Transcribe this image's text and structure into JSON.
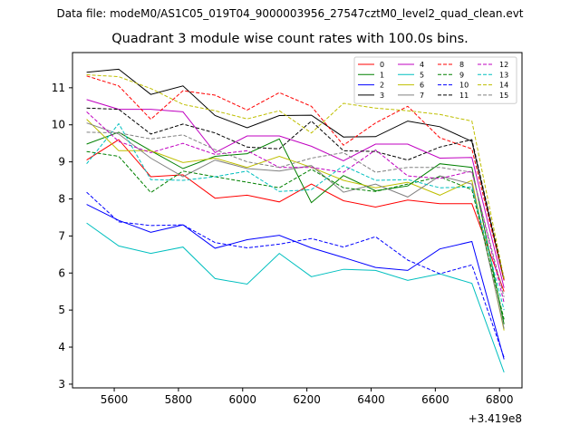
{
  "figure": {
    "suptitle": "Data file: modeM0/AS1C05_019T04_9000003956_27547cztM0_level2_quad_clean.evt"
  },
  "chart_data": {
    "type": "line",
    "title": "Quadrant 3 module wise count rates with 100.0s bins.",
    "xlabel": "",
    "ylabel": "",
    "x_offset_label": "+3.419e8",
    "xlim": [
      5470,
      6870
    ],
    "ylim": [
      2.9,
      11.95
    ],
    "xticks": [
      5600,
      5800,
      6000,
      6200,
      6400,
      6600,
      6800
    ],
    "yticks": [
      3,
      4,
      5,
      6,
      7,
      8,
      9,
      10,
      11
    ],
    "x": [
      5514,
      5614,
      5714,
      5814,
      5914,
      6014,
      6114,
      6214,
      6314,
      6414,
      6514,
      6614,
      6714,
      6814
    ],
    "legend": {
      "location": "upper-right",
      "columns": 4
    },
    "series": [
      {
        "name": "0",
        "color": "#ff0000",
        "style": "solid",
        "values": [
          9.05,
          9.6,
          8.6,
          8.65,
          8.02,
          8.1,
          7.92,
          8.4,
          7.95,
          7.78,
          7.97,
          7.87,
          7.87,
          5.5
        ]
      },
      {
        "name": "1",
        "color": "#008000",
        "style": "solid",
        "values": [
          9.48,
          9.8,
          9.3,
          8.82,
          9.15,
          9.22,
          9.62,
          7.9,
          8.63,
          8.22,
          8.35,
          8.95,
          8.85,
          4.62
        ]
      },
      {
        "name": "2",
        "color": "#0000ff",
        "style": "solid",
        "values": [
          7.85,
          7.42,
          7.1,
          7.3,
          6.67,
          6.9,
          7.02,
          6.68,
          6.42,
          6.15,
          6.07,
          6.65,
          6.85,
          3.67
        ]
      },
      {
        "name": "3",
        "color": "#000000",
        "style": "solid",
        "values": [
          11.42,
          11.5,
          10.82,
          11.05,
          10.25,
          9.92,
          10.25,
          10.26,
          9.67,
          9.68,
          10.1,
          9.95,
          9.55,
          5.8
        ]
      },
      {
        "name": "4",
        "color": "#c000c0",
        "style": "solid",
        "values": [
          10.68,
          10.42,
          10.42,
          10.35,
          9.25,
          9.7,
          9.7,
          9.42,
          9.03,
          9.48,
          9.48,
          9.1,
          9.12,
          5.6
        ]
      },
      {
        "name": "5",
        "color": "#00bfbf",
        "style": "solid",
        "values": [
          7.35,
          6.73,
          6.53,
          6.7,
          5.85,
          5.7,
          6.53,
          5.9,
          6.1,
          6.07,
          5.8,
          5.98,
          5.72,
          3.32
        ]
      },
      {
        "name": "6",
        "color": "#bfbf00",
        "style": "solid",
        "values": [
          10.15,
          9.3,
          9.3,
          8.98,
          9.1,
          8.85,
          9.15,
          8.85,
          8.5,
          8.3,
          8.45,
          8.1,
          8.5,
          4.45
        ]
      },
      {
        "name": "7",
        "color": "#808080",
        "style": "solid",
        "values": [
          10.05,
          9.75,
          9.1,
          8.6,
          9.05,
          8.82,
          8.75,
          8.9,
          8.18,
          8.4,
          8.05,
          8.62,
          8.4,
          4.5
        ]
      },
      {
        "name": "8",
        "color": "#ff0000",
        "style": "dashed",
        "values": [
          11.32,
          11.05,
          10.15,
          10.92,
          10.8,
          10.4,
          10.87,
          10.5,
          9.45,
          10.05,
          10.5,
          9.65,
          9.35,
          5.8
        ]
      },
      {
        "name": "9",
        "color": "#008000",
        "style": "dashed",
        "values": [
          9.28,
          9.15,
          8.17,
          8.75,
          8.6,
          8.45,
          8.3,
          8.8,
          8.3,
          8.2,
          8.4,
          8.6,
          8.25,
          4.75
        ]
      },
      {
        "name": "10",
        "color": "#0000ff",
        "style": "dashed",
        "values": [
          8.18,
          7.38,
          7.28,
          7.3,
          6.82,
          6.68,
          6.78,
          6.93,
          6.7,
          6.98,
          6.35,
          5.98,
          6.22,
          3.72
        ]
      },
      {
        "name": "11",
        "color": "#000000",
        "style": "dashed",
        "values": [
          10.45,
          10.42,
          9.75,
          10.02,
          9.78,
          9.4,
          9.35,
          10.1,
          9.3,
          9.28,
          9.05,
          9.4,
          9.6,
          5.85
        ]
      },
      {
        "name": "12",
        "color": "#c000c0",
        "style": "dashed",
        "values": [
          10.35,
          9.55,
          9.25,
          9.5,
          9.2,
          9.3,
          8.85,
          8.85,
          8.72,
          9.32,
          8.62,
          8.55,
          8.75,
          5.2
        ]
      },
      {
        "name": "13",
        "color": "#00bfbf",
        "style": "dashed",
        "values": [
          8.95,
          10.03,
          8.52,
          8.5,
          8.6,
          8.75,
          8.2,
          8.25,
          8.9,
          8.5,
          8.52,
          8.3,
          8.32,
          5.0
        ]
      },
      {
        "name": "14",
        "color": "#bfbf00",
        "style": "dashed",
        "values": [
          11.35,
          11.3,
          10.98,
          10.55,
          10.38,
          10.16,
          10.38,
          9.78,
          10.58,
          10.45,
          10.38,
          10.28,
          10.1,
          5.85
        ]
      },
      {
        "name": "15",
        "color": "#808080",
        "style": "dashed",
        "values": [
          9.8,
          9.78,
          9.62,
          9.73,
          9.33,
          9.0,
          8.85,
          9.1,
          9.25,
          8.72,
          8.85,
          8.85,
          8.72,
          5.35
        ]
      }
    ]
  }
}
